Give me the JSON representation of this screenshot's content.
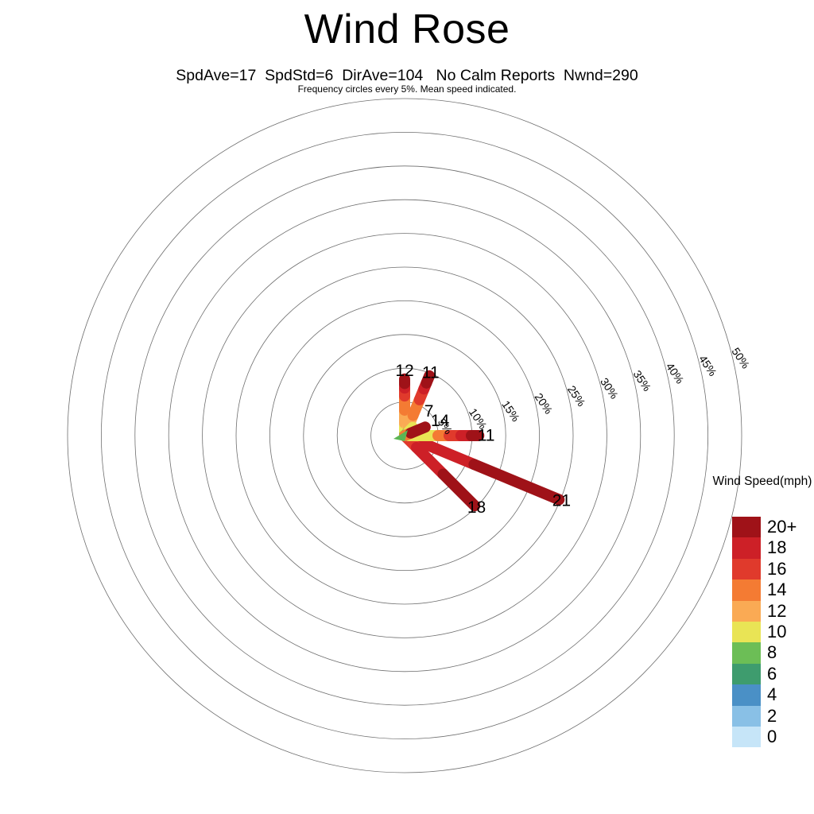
{
  "title": "Wind Rose",
  "subtitle": "SpdAve=17  SpdStd=6  DirAve=104   No Calm Reports  Nwnd=290",
  "note": "Frequency circles every 5%. Mean speed indicated.",
  "legend": {
    "title": "Wind Speed(mph)",
    "entries": [
      {
        "label": "20+",
        "color": "#9F1218"
      },
      {
        "label": "18",
        "color": "#CD2027"
      },
      {
        "label": "16",
        "color": "#E03A2C"
      },
      {
        "label": "14",
        "color": "#F47B33"
      },
      {
        "label": "12",
        "color": "#FAAA54"
      },
      {
        "label": "10",
        "color": "#E9E455"
      },
      {
        "label": "8",
        "color": "#6CBE56"
      },
      {
        "label": "6",
        "color": "#3E9C6E"
      },
      {
        "label": "4",
        "color": "#4A90C6"
      },
      {
        "label": "2",
        "color": "#89C0E6"
      },
      {
        "label": "0",
        "color": "#C6E5F8"
      }
    ]
  },
  "chart_data": {
    "type": "windrose-polar",
    "title": "Wind Rose",
    "stats": {
      "SpdAve": 17,
      "SpdStd": 6,
      "DirAve": 104,
      "calm": "No Calm Reports",
      "Nwnd": 290
    },
    "frequency_ring_step_pct": 5,
    "frequency_ring_max_pct": 50,
    "ring_labels": [
      "5%",
      "10%",
      "15%",
      "20%",
      "25%",
      "30%",
      "35%",
      "40%",
      "45%",
      "50%"
    ],
    "speed_bins_mph": [
      "0",
      "2",
      "4",
      "6",
      "8",
      "10",
      "12",
      "14",
      "16",
      "18",
      "20+"
    ],
    "petals": [
      {
        "direction": "N",
        "compass_deg": 0,
        "frequency_pct": 8.4,
        "mean_speed_label": "12",
        "label_radius_pct": 9.6,
        "segments": [
          {
            "speed": "8",
            "frac_end": 0.08
          },
          {
            "speed": "10",
            "frac_end": 0.22
          },
          {
            "speed": "12",
            "frac_end": 0.45
          },
          {
            "speed": "14",
            "frac_end": 0.7
          },
          {
            "speed": "16",
            "frac_end": 0.84
          },
          {
            "speed": "18",
            "frac_end": 0.92
          },
          {
            "speed": "20+",
            "frac_end": 1
          }
        ]
      },
      {
        "direction": "NNE",
        "compass_deg": 22.5,
        "frequency_pct": 9.6,
        "mean_speed_label": "11",
        "label_radius_pct": 10.1,
        "segments": [
          {
            "speed": "10",
            "frac_end": 0.14
          },
          {
            "speed": "12",
            "frac_end": 0.34
          },
          {
            "speed": "14",
            "frac_end": 0.6
          },
          {
            "speed": "16",
            "frac_end": 0.78
          },
          {
            "speed": "18",
            "frac_end": 0.88
          },
          {
            "speed": "20+",
            "frac_end": 1
          }
        ]
      },
      {
        "direction": "NE",
        "compass_deg": 45,
        "frequency_pct": 1.7,
        "mean_speed_label": "7",
        "label_radius_pct": 5.1,
        "segments": [
          {
            "speed": "8",
            "frac_end": 0.5
          },
          {
            "speed": "10",
            "frac_end": 1
          }
        ]
      },
      {
        "direction": "ENE",
        "compass_deg": 67.5,
        "frequency_pct": 3.3,
        "mean_speed_label": "14",
        "label_radius_pct": 5.7,
        "segments": [
          {
            "speed": "14",
            "frac_end": 0.3
          },
          {
            "speed": "20+",
            "frac_end": 1
          }
        ]
      },
      {
        "direction": "E",
        "compass_deg": 90,
        "frequency_pct": 11.0,
        "mean_speed_label": "11",
        "label_radius_pct": 12.1,
        "segments": [
          {
            "speed": "8",
            "frac_end": 0.05
          },
          {
            "speed": "10",
            "frac_end": 0.45
          },
          {
            "speed": "14",
            "frac_end": 0.6
          },
          {
            "speed": "16",
            "frac_end": 0.76
          },
          {
            "speed": "18",
            "frac_end": 0.9
          },
          {
            "speed": "20+",
            "frac_end": 1
          }
        ]
      },
      {
        "direction": "ESE",
        "compass_deg": 112.5,
        "frequency_pct": 24.8,
        "mean_speed_label": "21",
        "label_radius_pct": 25.2,
        "segments": [
          {
            "speed": "16",
            "frac_end": 0.06
          },
          {
            "speed": "18",
            "frac_end": 0.45
          },
          {
            "speed": "20+",
            "frac_end": 1
          }
        ]
      },
      {
        "direction": "SE",
        "compass_deg": 135,
        "frequency_pct": 14.7,
        "mean_speed_label": "18",
        "label_radius_pct": 15.1,
        "segments": [
          {
            "speed": "16",
            "frac_end": 0.17
          },
          {
            "speed": "18",
            "frac_end": 0.55
          },
          {
            "speed": "20+",
            "frac_end": 1
          }
        ]
      }
    ],
    "layout_hints": {
      "draw_order": [
        "ESE",
        "SE",
        "N",
        "NNE",
        "E",
        "NE",
        "ENE"
      ],
      "ring_label_azimuth_deg": 77,
      "ring_label_rotation_deg": 56,
      "legend_position": "right",
      "grid": "concentric-circles",
      "mean_direction_marker_color": "#5CB554"
    }
  }
}
